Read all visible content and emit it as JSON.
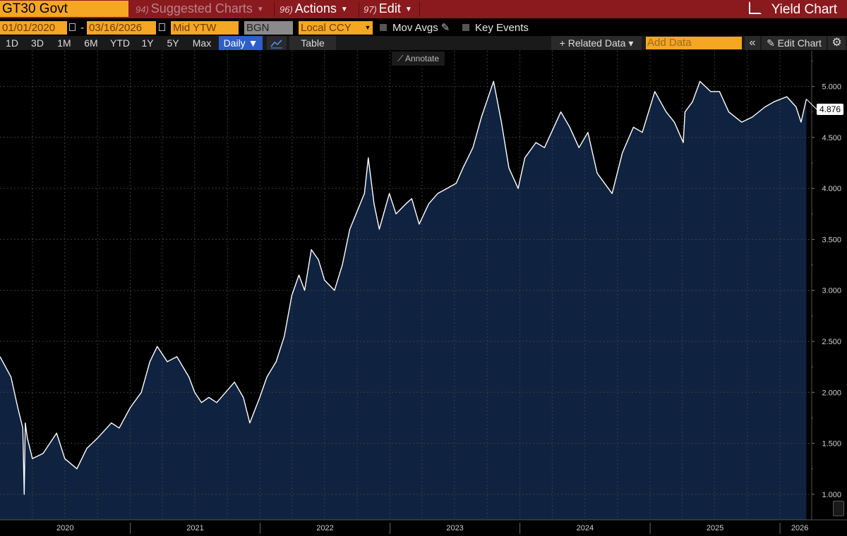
{
  "header": {
    "ticker": "GT30 Govt",
    "suggested": {
      "num": "94)",
      "label": "Suggested Charts"
    },
    "actions": {
      "num": "96)",
      "label": "Actions"
    },
    "edit": {
      "num": "97)",
      "label": "Edit"
    },
    "yield_chart": "Yield Chart"
  },
  "controls": {
    "start_date": "01/01/2020",
    "dash": "-",
    "end_date": "03/16/2026",
    "field": "Mid YTW",
    "source": "BGN",
    "currency": "Local CCY",
    "mov_avgs": "Mov Avgs",
    "key_events": "Key Events"
  },
  "ranges": [
    "1D",
    "3D",
    "1M",
    "6M",
    "YTD",
    "1Y",
    "5Y",
    "Max"
  ],
  "toolbar": {
    "period": "Daily ▼",
    "table": "Table",
    "related_data": "+ Related Data ▾",
    "add_data_placeholder": "Add Data",
    "collapse": "«",
    "edit_chart": "✎ Edit Chart",
    "settings_icon": "⚙"
  },
  "annotate_label": "⟋ Annotate",
  "colors": {
    "accent": "#f5a623",
    "header": "#8b1a1f",
    "fill": "#0f2340",
    "line": "#ffffff"
  },
  "chart_data": {
    "type": "area",
    "title": "GT30 Govt Mid YTW",
    "series": [
      {
        "name": "Mid YTW",
        "x": [
          "2020-01-01",
          "2020-02-01",
          "2020-02-20",
          "2020-03-05",
          "2020-03-09",
          "2020-03-12",
          "2020-03-18",
          "2020-04-01",
          "2020-05-01",
          "2020-06-08",
          "2020-07-01",
          "2020-08-04",
          "2020-09-01",
          "2020-10-01",
          "2020-11-09",
          "2020-12-01",
          "2021-01-01",
          "2021-02-01",
          "2021-02-25",
          "2021-03-18",
          "2021-04-15",
          "2021-05-12",
          "2021-06-15",
          "2021-07-01",
          "2021-07-20",
          "2021-08-10",
          "2021-09-01",
          "2021-10-21",
          "2021-11-15",
          "2021-12-03",
          "2021-12-31",
          "2022-01-20",
          "2022-02-15",
          "2022-03-10",
          "2022-03-31",
          "2022-04-20",
          "2022-05-06",
          "2022-05-25",
          "2022-06-14",
          "2022-07-01",
          "2022-07-29",
          "2022-08-20",
          "2022-09-10",
          "2022-10-21",
          "2022-11-01",
          "2022-11-17",
          "2022-12-02",
          "2022-12-30",
          "2023-01-18",
          "2023-02-15",
          "2023-03-03",
          "2023-03-24",
          "2023-04-20",
          "2023-05-15",
          "2023-06-10",
          "2023-07-06",
          "2023-07-25",
          "2023-08-22",
          "2023-09-15",
          "2023-10-19",
          "2023-11-10",
          "2023-12-01",
          "2023-12-27",
          "2024-01-15",
          "2024-02-15",
          "2024-03-10",
          "2024-04-25",
          "2024-05-20",
          "2024-06-15",
          "2024-07-10",
          "2024-08-05",
          "2024-09-16",
          "2024-10-15",
          "2024-11-15",
          "2024-12-10",
          "2025-01-14",
          "2025-02-15",
          "2025-03-10",
          "2025-04-04",
          "2025-04-09",
          "2025-04-30",
          "2025-05-21",
          "2025-06-20",
          "2025-07-15",
          "2025-08-10",
          "2025-09-15",
          "2025-10-15",
          "2025-11-20",
          "2025-12-15",
          "2026-01-20",
          "2026-02-15",
          "2026-03-01",
          "2026-03-16"
        ],
        "values": [
          2.35,
          2.15,
          1.85,
          1.65,
          1.0,
          1.7,
          1.55,
          1.35,
          1.4,
          1.6,
          1.35,
          1.25,
          1.45,
          1.55,
          1.7,
          1.65,
          1.85,
          2.0,
          2.3,
          2.45,
          2.3,
          2.35,
          2.15,
          2.0,
          1.9,
          1.95,
          1.9,
          2.1,
          1.95,
          1.7,
          1.95,
          2.15,
          2.3,
          2.55,
          2.95,
          3.15,
          3.0,
          3.4,
          3.3,
          3.1,
          3.0,
          3.25,
          3.6,
          3.95,
          4.3,
          3.85,
          3.6,
          3.95,
          3.75,
          3.85,
          3.9,
          3.65,
          3.85,
          3.95,
          4.0,
          4.05,
          4.2,
          4.4,
          4.7,
          5.05,
          4.65,
          4.2,
          4.0,
          4.3,
          4.45,
          4.4,
          4.75,
          4.6,
          4.4,
          4.55,
          4.15,
          3.95,
          4.35,
          4.6,
          4.55,
          4.95,
          4.75,
          4.65,
          4.45,
          4.75,
          4.85,
          5.05,
          4.95,
          4.95,
          4.75,
          4.65,
          4.7,
          4.8,
          4.85,
          4.9,
          4.8,
          4.65,
          4.876
        ]
      }
    ],
    "last_value_label": "4.876",
    "xlabel": "",
    "ylabel": "",
    "x_tick_labels": [
      "2020",
      "2021",
      "2022",
      "2023",
      "2024",
      "2025",
      "2026"
    ],
    "y_ticks": [
      1.0,
      1.5,
      2.0,
      2.5,
      3.0,
      3.5,
      4.0,
      4.5,
      5.0
    ],
    "y_tick_labels": [
      "1.000",
      "1.500",
      "2.000",
      "2.500",
      "3.000",
      "3.500",
      "4.000",
      "4.500",
      "5.000"
    ],
    "ylim": [
      0.75,
      5.35
    ],
    "xlim": [
      "2020-01-01",
      "2026-03-31"
    ],
    "grid": true
  }
}
